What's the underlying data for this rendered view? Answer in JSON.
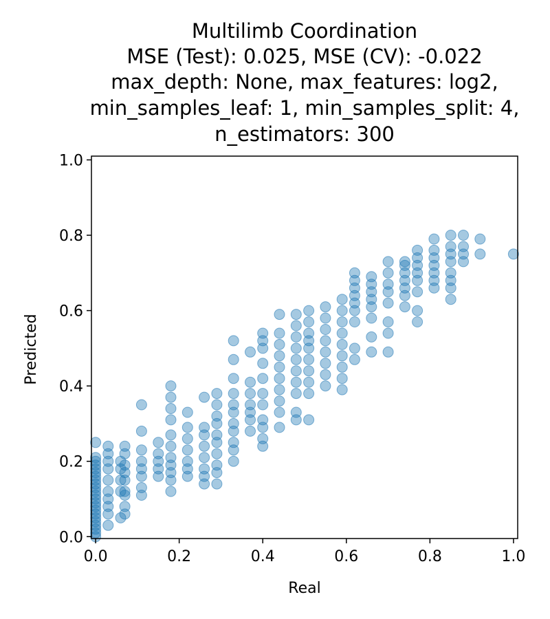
{
  "chart_data": {
    "type": "scatter",
    "title_lines": [
      "Multilimb Coordination",
      "MSE (Test): 0.025, MSE (CV): -0.022",
      "max_depth: None, max_features: log2,",
      "min_samples_leaf: 1, min_samples_split: 4,",
      "n_estimators: 300"
    ],
    "xlabel": "Real",
    "ylabel": "Predicted",
    "xlim": [
      -0.01,
      1.01
    ],
    "ylim": [
      -0.005,
      1.01
    ],
    "xticks": [
      "0.0",
      "0.2",
      "0.4",
      "0.6",
      "0.8",
      "1.0"
    ],
    "yticks": [
      "0.0",
      "0.2",
      "0.4",
      "0.6",
      "0.8",
      "1.0"
    ],
    "grid": false,
    "marker_color": "#1f77b4",
    "marker_alpha": 0.4,
    "groups": [
      {
        "x": 0.0,
        "y": [
          0.0,
          0.01,
          0.02,
          0.03,
          0.04,
          0.05,
          0.06,
          0.07,
          0.08,
          0.09,
          0.1,
          0.11,
          0.12,
          0.13,
          0.14,
          0.15,
          0.16,
          0.17,
          0.18,
          0.19,
          0.2,
          0.21,
          0.25
        ]
      },
      {
        "x": 0.03,
        "y": [
          0.03,
          0.06,
          0.08,
          0.1,
          0.12,
          0.15,
          0.18,
          0.2,
          0.22,
          0.24
        ]
      },
      {
        "x": 0.06,
        "y": [
          0.05,
          0.12,
          0.15,
          0.18,
          0.2
        ]
      },
      {
        "x": 0.07,
        "y": [
          0.06,
          0.08,
          0.11,
          0.12,
          0.15,
          0.17,
          0.19,
          0.22,
          0.24
        ]
      },
      {
        "x": 0.11,
        "y": [
          0.11,
          0.13,
          0.16,
          0.18,
          0.2,
          0.23,
          0.28,
          0.35
        ]
      },
      {
        "x": 0.15,
        "y": [
          0.16,
          0.18,
          0.2,
          0.22,
          0.25
        ]
      },
      {
        "x": 0.18,
        "y": [
          0.12,
          0.15,
          0.17,
          0.19,
          0.21,
          0.24,
          0.27,
          0.31,
          0.34,
          0.37,
          0.4
        ]
      },
      {
        "x": 0.22,
        "y": [
          0.16,
          0.18,
          0.2,
          0.23,
          0.26,
          0.29,
          0.33
        ]
      },
      {
        "x": 0.26,
        "y": [
          0.14,
          0.16,
          0.18,
          0.21,
          0.24,
          0.27,
          0.29,
          0.37
        ]
      },
      {
        "x": 0.29,
        "y": [
          0.14,
          0.17,
          0.19,
          0.22,
          0.25,
          0.27,
          0.3,
          0.32,
          0.35,
          0.38
        ]
      },
      {
        "x": 0.33,
        "y": [
          0.2,
          0.23,
          0.25,
          0.28,
          0.3,
          0.33,
          0.35,
          0.38,
          0.42,
          0.47,
          0.52
        ]
      },
      {
        "x": 0.37,
        "y": [
          0.28,
          0.31,
          0.33,
          0.35,
          0.38,
          0.41,
          0.49
        ]
      },
      {
        "x": 0.4,
        "y": [
          0.24,
          0.26,
          0.29,
          0.31,
          0.35,
          0.38,
          0.42,
          0.46,
          0.5,
          0.52,
          0.54
        ]
      },
      {
        "x": 0.44,
        "y": [
          0.29,
          0.33,
          0.36,
          0.39,
          0.42,
          0.45,
          0.48,
          0.51,
          0.54,
          0.59
        ]
      },
      {
        "x": 0.48,
        "y": [
          0.31,
          0.33,
          0.38,
          0.41,
          0.44,
          0.47,
          0.5,
          0.53,
          0.56,
          0.59
        ]
      },
      {
        "x": 0.51,
        "y": [
          0.31,
          0.38,
          0.41,
          0.44,
          0.47,
          0.5,
          0.52,
          0.54,
          0.57,
          0.6
        ]
      },
      {
        "x": 0.55,
        "y": [
          0.4,
          0.43,
          0.46,
          0.49,
          0.52,
          0.55,
          0.58,
          0.61
        ]
      },
      {
        "x": 0.59,
        "y": [
          0.39,
          0.42,
          0.45,
          0.48,
          0.51,
          0.54,
          0.57,
          0.6,
          0.63
        ]
      },
      {
        "x": 0.62,
        "y": [
          0.47,
          0.5,
          0.57,
          0.6,
          0.62,
          0.64,
          0.66,
          0.68,
          0.7
        ]
      },
      {
        "x": 0.66,
        "y": [
          0.49,
          0.53,
          0.58,
          0.61,
          0.63,
          0.65,
          0.67,
          0.69
        ]
      },
      {
        "x": 0.7,
        "y": [
          0.49,
          0.54,
          0.57,
          0.62,
          0.65,
          0.67,
          0.7,
          0.73
        ]
      },
      {
        "x": 0.74,
        "y": [
          0.61,
          0.64,
          0.66,
          0.68,
          0.7,
          0.72,
          0.73
        ]
      },
      {
        "x": 0.77,
        "y": [
          0.57,
          0.6,
          0.65,
          0.68,
          0.7,
          0.72,
          0.74,
          0.76
        ]
      },
      {
        "x": 0.81,
        "y": [
          0.66,
          0.68,
          0.7,
          0.72,
          0.74,
          0.76,
          0.79
        ]
      },
      {
        "x": 0.85,
        "y": [
          0.63,
          0.66,
          0.68,
          0.7,
          0.73,
          0.75,
          0.77,
          0.8
        ]
      },
      {
        "x": 0.88,
        "y": [
          0.73,
          0.75,
          0.77,
          0.8
        ]
      },
      {
        "x": 0.92,
        "y": [
          0.75,
          0.79
        ]
      },
      {
        "x": 1.0,
        "y": [
          0.75
        ]
      }
    ]
  }
}
